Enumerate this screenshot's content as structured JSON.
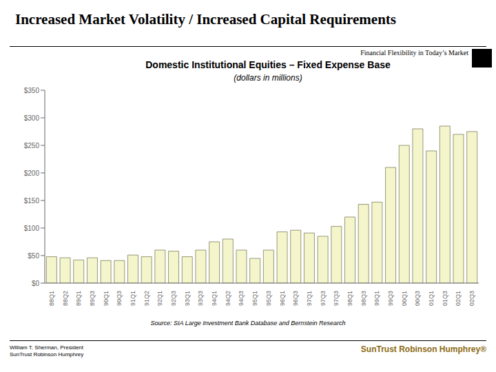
{
  "chart_data": {
    "type": "bar",
    "title": "Increased Market Volatility / Increased Capital Requirements",
    "subtitle": "Domestic Institutional Equities – Fixed Expense Base",
    "annotations": [
      "(dollars in millions)",
      "Financial Flexibility in Today’s Market",
      "Source: SIA Large Investment Bank Database and Bernstein Research",
      "William T. Sherman, President\nSunTrust Robinson Humphrey",
      "SunTrust Robinson Humphrey®"
    ],
    "categories": [
      "88Q1",
      "88Q2",
      "89Q1",
      "89Q3",
      "90Q1",
      "90Q3",
      "91Q1",
      "91Q2",
      "92Q1",
      "92Q3",
      "93Q1",
      "93Q3",
      "94Q1",
      "94Q2",
      "94Q3",
      "95Q1",
      "95Q3",
      "96Q1",
      "96Q3",
      "97Q1",
      "97Q3",
      "97Q3",
      "98Q1",
      "98Q3",
      "99Q1",
      "99Q3",
      "00Q1",
      "00Q3",
      "01Q1",
      "01Q3",
      "02Q1",
      "02Q3"
    ],
    "values": [
      48,
      46,
      42,
      46,
      41,
      41,
      51,
      48,
      60,
      58,
      48,
      60,
      75,
      80,
      60,
      45,
      60,
      93,
      96,
      91,
      85,
      103,
      120,
      143,
      147,
      210,
      250,
      280,
      240,
      285,
      270,
      275
    ],
    "color": "#f5f5cc",
    "ylim": [
      0,
      350
    ],
    "yticks": [
      {
        "value": 0,
        "label": "$0"
      },
      {
        "value": 50,
        "label": "$50"
      },
      {
        "value": 100,
        "label": "$100"
      },
      {
        "value": 150,
        "label": "$150"
      },
      {
        "value": 200,
        "label": "$200"
      },
      {
        "value": 250,
        "label": "$250"
      },
      {
        "value": 300,
        "label": "$300"
      },
      {
        "value": 350,
        "label": "$350"
      }
    ],
    "grid": false
  }
}
